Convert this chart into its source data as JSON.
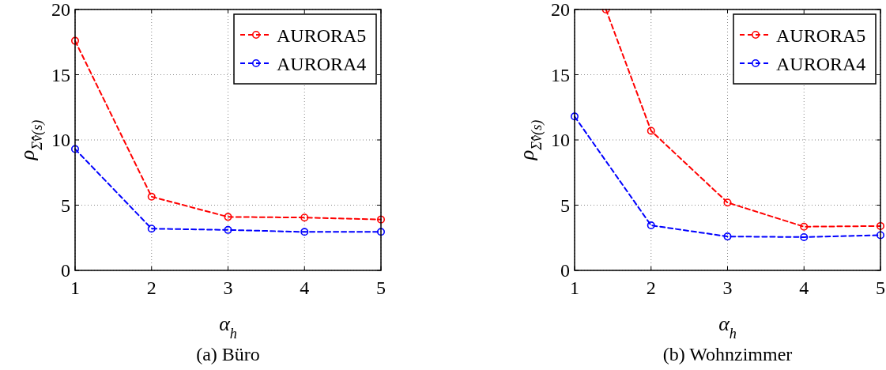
{
  "chart_data": [
    {
      "type": "line",
      "title": "(a) Büro",
      "xlabel": "α$_{h}$",
      "ylabel": "ρ$_{Σ̂v̂(s)}$",
      "x": [
        1,
        2,
        3,
        4,
        5
      ],
      "xlim": [
        1,
        5
      ],
      "xticks": [
        1,
        2,
        3,
        4,
        5
      ],
      "ylim": [
        0,
        20
      ],
      "yticks": [
        0,
        5,
        10,
        15,
        20
      ],
      "grid": true,
      "legend": "top right",
      "marker": "circle",
      "line_style": "dashed",
      "series": [
        {
          "name": "AURORA5",
          "color": "#ff0000",
          "values": [
            17.6,
            5.65,
            4.1,
            4.05,
            3.9
          ]
        },
        {
          "name": "AURORA4",
          "color": "#0000ff",
          "values": [
            9.3,
            3.2,
            3.1,
            2.95,
            2.95
          ]
        }
      ]
    },
    {
      "type": "line",
      "title": "(b) Wohnzimmer",
      "xlabel": "α$_{h}$",
      "ylabel": "ρ$_{Σ̂v̂(s)}$",
      "x": [
        1,
        2,
        3,
        4,
        5
      ],
      "xlim": [
        1,
        5
      ],
      "xticks": [
        1,
        2,
        3,
        4,
        5
      ],
      "ylim": [
        0,
        20
      ],
      "yticks": [
        0,
        5,
        10,
        15,
        20
      ],
      "grid": true,
      "legend": "top right",
      "marker": "circle",
      "line_style": "dashed",
      "series": [
        {
          "name": "AURORA5",
          "color": "#ff0000",
          "x": [
            1.41,
            2,
            3,
            4,
            5
          ],
          "values": [
            20,
            10.7,
            5.2,
            3.35,
            3.4
          ]
        },
        {
          "name": "AURORA4",
          "color": "#0000ff",
          "values": [
            11.8,
            3.45,
            2.6,
            2.55,
            2.7
          ]
        }
      ]
    }
  ]
}
